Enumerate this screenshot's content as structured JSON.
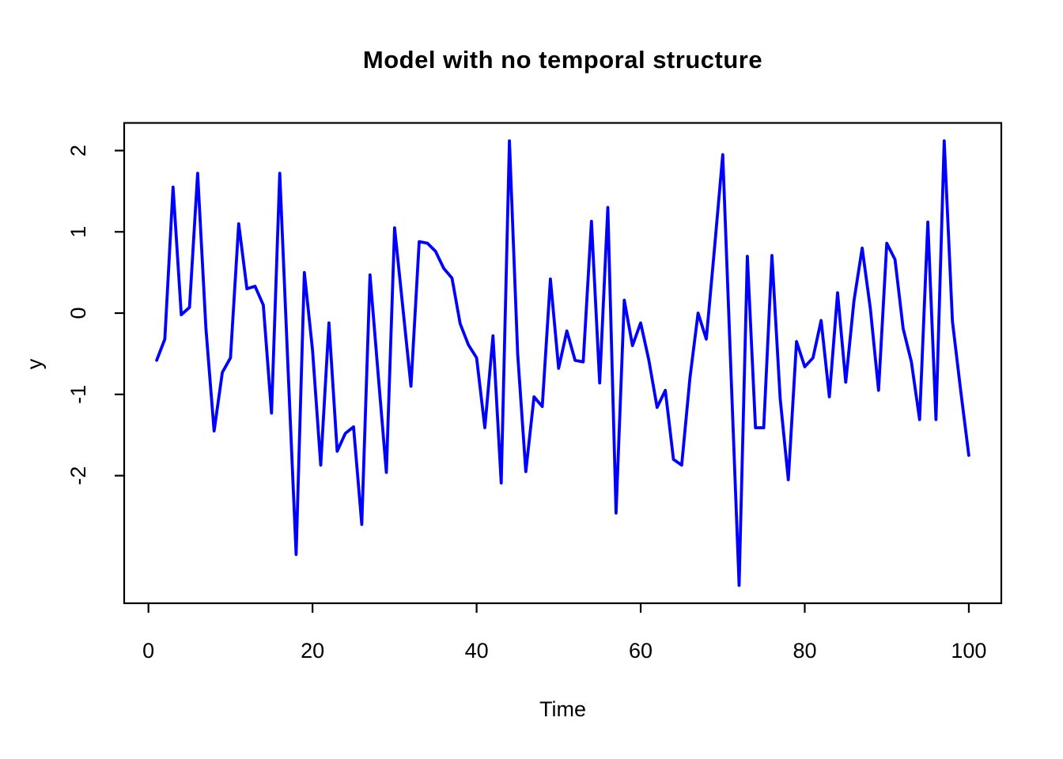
{
  "chart_data": {
    "type": "line",
    "title": "Model with no temporal structure",
    "xlabel": "Time",
    "ylabel": "y",
    "series_color": "#0000FF",
    "axis_color": "#000000",
    "background": "#FFFFFF",
    "x_start": 1,
    "x_ticks": [
      0,
      20,
      40,
      60,
      80,
      100
    ],
    "y_ticks": [
      -2,
      -1,
      0,
      1,
      2
    ],
    "xlim": [
      -2.96,
      103.96
    ],
    "ylim": [
      -3.57,
      2.34
    ],
    "grid": false,
    "legend": "none",
    "values": [
      -0.58,
      -0.32,
      1.55,
      -0.02,
      0.07,
      1.72,
      -0.18,
      -1.45,
      -0.73,
      -0.55,
      1.1,
      0.3,
      0.33,
      0.1,
      -1.23,
      1.72,
      -0.64,
      -2.97,
      0.5,
      -0.45,
      -1.87,
      -0.12,
      -1.7,
      -1.48,
      -1.4,
      -2.6,
      0.47,
      -0.75,
      -1.96,
      1.05,
      0.08,
      -0.9,
      0.88,
      0.86,
      0.76,
      0.55,
      0.43,
      -0.13,
      -0.39,
      -0.55,
      -1.41,
      -0.28,
      -2.09,
      2.12,
      -0.5,
      -1.95,
      -1.03,
      -1.15,
      0.42,
      -0.68,
      -0.22,
      -0.58,
      -0.6,
      1.13,
      -0.86,
      1.3,
      -2.46,
      0.16,
      -0.4,
      -0.12,
      -0.58,
      -1.16,
      -0.95,
      -1.8,
      -1.87,
      -0.8,
      0.0,
      -0.32,
      0.8,
      1.95,
      -0.7,
      -3.35,
      0.7,
      -1.41,
      -1.41,
      0.71,
      -1.05,
      -2.05,
      -0.35,
      -0.66,
      -0.55,
      -0.09,
      -1.03,
      0.25,
      -0.85,
      0.15,
      0.8,
      0.05,
      -0.95,
      0.86,
      0.66,
      -0.19,
      -0.6,
      -1.31,
      1.12,
      -1.31,
      2.12,
      -0.1,
      -0.95,
      -1.75
    ]
  }
}
